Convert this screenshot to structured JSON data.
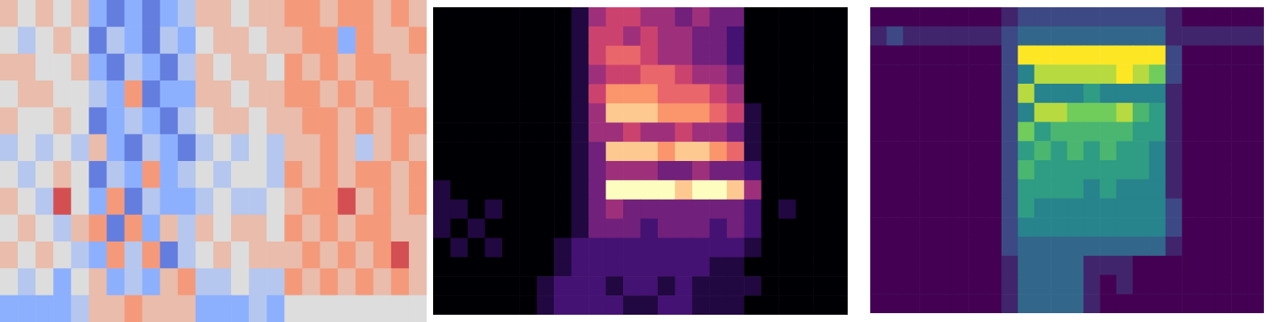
{
  "chart_data": [
    {
      "type": "heatmap",
      "color": "coolwarm",
      "tick_labels": false,
      "zlim": [
        -4,
        4
      ],
      "cells": [
        [
          1,
          0,
          1,
          0,
          1,
          -2,
          -3,
          -2,
          -3,
          -2,
          -1,
          1,
          1,
          0,
          1,
          1,
          2,
          2,
          1,
          2,
          2,
          1,
          2,
          1
        ],
        [
          0,
          -1,
          0,
          1,
          0,
          -3,
          -1,
          -2,
          -3,
          -1,
          -2,
          0,
          1,
          1,
          0,
          1,
          1,
          2,
          2,
          -2,
          2,
          1,
          1,
          2
        ],
        [
          1,
          1,
          0,
          0,
          1,
          -2,
          -3,
          -1,
          -2,
          -3,
          -1,
          1,
          0,
          1,
          1,
          0,
          2,
          1,
          2,
          1,
          2,
          2,
          1,
          1
        ],
        [
          0,
          1,
          1,
          0,
          0,
          -1,
          -2,
          2,
          -3,
          -2,
          -2,
          1,
          1,
          0,
          1,
          1,
          2,
          2,
          1,
          2,
          1,
          2,
          2,
          1
        ],
        [
          1,
          0,
          0,
          1,
          0,
          -3,
          -2,
          -1,
          -2,
          -3,
          -1,
          0,
          1,
          1,
          0,
          1,
          1,
          2,
          2,
          1,
          2,
          1,
          2,
          2
        ],
        [
          -1,
          0,
          -1,
          0,
          -1,
          1,
          -2,
          -3,
          -1,
          -2,
          -3,
          -1,
          0,
          -1,
          0,
          -1,
          1,
          1,
          2,
          1,
          -1,
          1,
          2,
          1
        ],
        [
          0,
          -1,
          0,
          1,
          0,
          -3,
          -1,
          -2,
          2,
          -2,
          -1,
          0,
          -1,
          0,
          0,
          -1,
          2,
          1,
          2,
          1,
          2,
          2,
          1,
          2
        ],
        [
          1,
          0,
          -1,
          3,
          0,
          -2,
          2,
          -3,
          -1,
          -2,
          -2,
          -1,
          0,
          -1,
          -1,
          0,
          1,
          2,
          2,
          3,
          1,
          2,
          1,
          2
        ],
        [
          0,
          1,
          0,
          -1,
          1,
          2,
          -3,
          2,
          -2,
          1,
          -1,
          1,
          0,
          1,
          1,
          0,
          2,
          1,
          2,
          1,
          2,
          2,
          1,
          1
        ],
        [
          1,
          0,
          1,
          0,
          -1,
          -2,
          2,
          -1,
          2,
          -3,
          -1,
          0,
          1,
          0,
          1,
          1,
          1,
          2,
          1,
          2,
          1,
          2,
          3,
          1
        ],
        [
          0,
          -1,
          0,
          -2,
          0,
          1,
          -2,
          -1,
          -2,
          1,
          2,
          -1,
          -1,
          0,
          -1,
          -1,
          2,
          1,
          2,
          1,
          2,
          1,
          2,
          1
        ],
        [
          -2,
          -2,
          -2,
          -2,
          -1,
          1,
          1,
          2,
          1,
          1,
          1,
          -2,
          -2,
          -2,
          -1,
          -2,
          0,
          0,
          0,
          0,
          0,
          0,
          0,
          0
        ]
      ]
    },
    {
      "type": "heatmap",
      "color": "magma",
      "tick_labels": false,
      "zlim": [
        0,
        9
      ],
      "cells": [
        [
          0,
          0,
          0,
          0,
          0,
          0,
          0,
          0,
          1,
          4,
          5,
          5,
          4,
          4,
          3,
          4,
          3,
          3,
          0,
          0,
          0,
          0,
          0,
          0
        ],
        [
          0,
          0,
          0,
          0,
          0,
          0,
          0,
          0,
          1,
          5,
          5,
          4,
          5,
          4,
          4,
          3,
          3,
          2,
          0,
          0,
          0,
          0,
          0,
          0
        ],
        [
          0,
          0,
          0,
          0,
          0,
          0,
          0,
          0,
          1,
          5,
          6,
          6,
          5,
          4,
          4,
          3,
          3,
          2,
          0,
          0,
          0,
          0,
          0,
          0
        ],
        [
          0,
          0,
          0,
          0,
          0,
          0,
          0,
          0,
          1,
          4,
          5,
          5,
          6,
          6,
          5,
          4,
          4,
          3,
          0,
          0,
          0,
          0,
          0,
          0
        ],
        [
          0,
          0,
          0,
          0,
          0,
          0,
          0,
          0,
          1,
          5,
          7,
          7,
          7,
          6,
          6,
          6,
          5,
          4,
          0,
          0,
          0,
          0,
          0,
          0
        ],
        [
          0,
          0,
          0,
          0,
          0,
          0,
          0,
          0,
          1,
          4,
          8,
          8,
          8,
          7,
          7,
          7,
          6,
          5,
          1,
          0,
          0,
          0,
          0,
          0
        ],
        [
          0,
          0,
          0,
          0,
          0,
          0,
          0,
          0,
          1,
          4,
          4,
          5,
          4,
          4,
          5,
          4,
          4,
          3,
          1,
          0,
          0,
          0,
          0,
          0
        ],
        [
          0,
          0,
          0,
          0,
          0,
          0,
          0,
          0,
          1,
          3,
          8,
          8,
          8,
          7,
          8,
          8,
          7,
          6,
          1,
          0,
          0,
          0,
          0,
          0
        ],
        [
          0,
          0,
          0,
          0,
          0,
          0,
          0,
          0,
          1,
          3,
          4,
          4,
          4,
          3,
          3,
          4,
          3,
          3,
          2,
          0,
          0,
          0,
          0,
          0
        ],
        [
          1,
          0,
          0,
          0,
          0,
          0,
          0,
          0,
          1,
          3,
          9,
          9,
          9,
          9,
          8,
          9,
          9,
          8,
          4,
          0,
          0,
          0,
          0,
          0
        ],
        [
          1,
          1,
          0,
          1,
          0,
          0,
          0,
          0,
          1,
          3,
          4,
          3,
          3,
          3,
          3,
          3,
          3,
          3,
          2,
          0,
          1,
          0,
          0,
          0
        ],
        [
          1,
          0,
          1,
          0,
          0,
          0,
          0,
          0,
          1,
          3,
          3,
          3,
          2,
          3,
          3,
          3,
          2,
          3,
          2,
          0,
          0,
          0,
          0,
          0
        ],
        [
          0,
          1,
          0,
          1,
          0,
          0,
          0,
          1,
          2,
          2,
          2,
          2,
          2,
          2,
          2,
          2,
          2,
          2,
          1,
          0,
          0,
          0,
          0,
          0
        ],
        [
          0,
          0,
          0,
          0,
          0,
          0,
          0,
          1,
          2,
          2,
          2,
          2,
          2,
          2,
          2,
          2,
          1,
          1,
          0,
          0,
          0,
          0,
          0,
          0
        ],
        [
          0,
          0,
          0,
          0,
          0,
          0,
          1,
          2,
          2,
          2,
          1,
          2,
          2,
          1,
          2,
          1,
          1,
          1,
          1,
          0,
          0,
          0,
          0,
          0
        ],
        [
          0,
          0,
          0,
          0,
          0,
          0,
          1,
          2,
          2,
          2,
          2,
          1,
          1,
          2,
          2,
          1,
          1,
          1,
          0,
          0,
          0,
          0,
          0,
          0
        ]
      ]
    },
    {
      "type": "heatmap",
      "color": "viridis",
      "tick_labels": false,
      "zlim": [
        0,
        9
      ],
      "cells": [
        [
          0,
          0,
          0,
          0,
          0,
          0,
          0,
          0,
          1,
          2,
          2,
          2,
          2,
          2,
          2,
          2,
          2,
          2,
          1,
          0,
          0,
          0,
          0,
          0
        ],
        [
          1,
          2,
          1,
          1,
          1,
          1,
          1,
          1,
          2,
          3,
          3,
          3,
          3,
          3,
          3,
          3,
          3,
          3,
          1,
          1,
          1,
          1,
          1,
          1
        ],
        [
          0,
          0,
          0,
          0,
          0,
          0,
          0,
          0,
          2,
          9,
          9,
          9,
          9,
          9,
          9,
          9,
          9,
          9,
          2,
          0,
          0,
          0,
          0,
          0
        ],
        [
          0,
          0,
          0,
          0,
          0,
          0,
          0,
          0,
          2,
          4,
          8,
          8,
          8,
          8,
          8,
          9,
          8,
          7,
          2,
          0,
          0,
          0,
          0,
          0
        ],
        [
          0,
          0,
          0,
          0,
          0,
          0,
          0,
          0,
          2,
          8,
          4,
          4,
          4,
          5,
          4,
          4,
          4,
          4,
          1,
          0,
          0,
          0,
          0,
          0
        ],
        [
          0,
          0,
          0,
          0,
          0,
          0,
          0,
          0,
          2,
          4,
          8,
          8,
          7,
          7,
          7,
          8,
          6,
          5,
          1,
          0,
          0,
          0,
          0,
          0
        ],
        [
          0,
          0,
          0,
          0,
          0,
          0,
          0,
          0,
          2,
          7,
          5,
          6,
          6,
          6,
          6,
          6,
          5,
          5,
          1,
          0,
          0,
          0,
          0,
          0
        ],
        [
          0,
          0,
          0,
          0,
          0,
          0,
          0,
          0,
          2,
          5,
          6,
          5,
          6,
          5,
          6,
          5,
          5,
          4,
          1,
          0,
          0,
          0,
          0,
          0
        ],
        [
          0,
          0,
          0,
          0,
          0,
          0,
          0,
          0,
          2,
          6,
          5,
          5,
          5,
          5,
          5,
          5,
          5,
          4,
          1,
          0,
          0,
          0,
          0,
          0
        ],
        [
          0,
          0,
          0,
          0,
          0,
          0,
          0,
          0,
          2,
          5,
          5,
          5,
          5,
          4,
          5,
          4,
          4,
          4,
          1,
          0,
          0,
          0,
          0,
          0
        ],
        [
          0,
          0,
          0,
          0,
          0,
          0,
          0,
          0,
          2,
          5,
          4,
          4,
          4,
          4,
          4,
          4,
          4,
          4,
          2,
          0,
          0,
          0,
          0,
          0
        ],
        [
          0,
          0,
          0,
          0,
          0,
          0,
          0,
          0,
          2,
          4,
          4,
          4,
          4,
          4,
          4,
          4,
          4,
          4,
          2,
          0,
          0,
          0,
          0,
          0
        ],
        [
          0,
          0,
          0,
          0,
          0,
          0,
          0,
          0,
          2,
          3,
          3,
          3,
          3,
          3,
          3,
          3,
          3,
          3,
          1,
          0,
          0,
          0,
          0,
          0
        ],
        [
          0,
          0,
          0,
          0,
          0,
          0,
          0,
          0,
          1,
          3,
          3,
          3,
          3,
          1,
          1,
          1,
          0,
          0,
          0,
          0,
          0,
          0,
          0,
          0
        ],
        [
          0,
          0,
          0,
          0,
          0,
          0,
          0,
          0,
          1,
          3,
          3,
          3,
          3,
          1,
          0,
          1,
          0,
          0,
          0,
          0,
          0,
          0,
          0,
          0
        ],
        [
          0,
          0,
          0,
          0,
          0,
          0,
          0,
          0,
          1,
          3,
          3,
          3,
          3,
          1,
          0,
          0,
          0,
          0,
          0,
          0,
          0,
          0,
          0,
          0
        ]
      ]
    }
  ]
}
